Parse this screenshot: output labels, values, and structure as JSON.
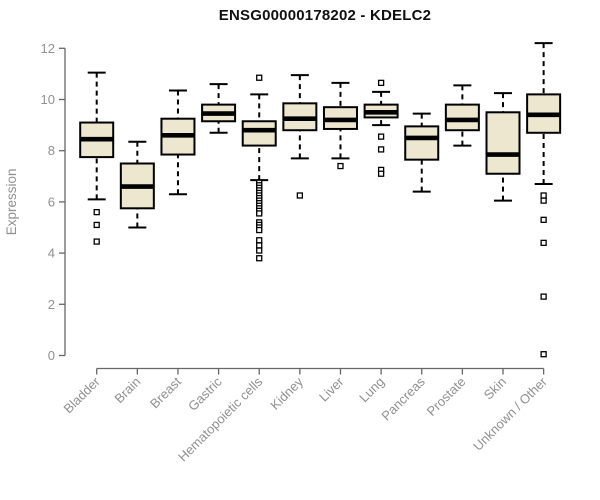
{
  "chart_data": {
    "type": "boxplot",
    "title": "ENSG00000178202 - KDELC2",
    "xlabel": "",
    "ylabel": "Expression",
    "ylim": [
      0,
      12
    ],
    "yticks": [
      0,
      2,
      4,
      6,
      8,
      10,
      12
    ],
    "grid": false,
    "legend": "none",
    "categories": [
      "Bladder",
      "Brain",
      "Breast",
      "Gastric",
      "Hematopoietic cells",
      "Kidney",
      "Liver",
      "Lung",
      "Pancreas",
      "Prostate",
      "Skin",
      "Unknown / Other"
    ],
    "series": [
      {
        "name": "Bladder",
        "low": 6.1,
        "q1": 7.75,
        "median": 8.45,
        "q3": 9.1,
        "high": 11.05,
        "outliers": [
          5.6,
          5.1,
          4.45
        ]
      },
      {
        "name": "Brain",
        "low": 5.0,
        "q1": 5.75,
        "median": 6.6,
        "q3": 7.5,
        "high": 8.35,
        "outliers": []
      },
      {
        "name": "Breast",
        "low": 6.3,
        "q1": 7.85,
        "median": 8.6,
        "q3": 9.25,
        "high": 10.35,
        "outliers": []
      },
      {
        "name": "Gastric",
        "low": 8.7,
        "q1": 9.15,
        "median": 9.45,
        "q3": 9.8,
        "high": 10.6,
        "outliers": []
      },
      {
        "name": "Hematopoietic cells",
        "low": 6.85,
        "q1": 8.2,
        "median": 8.8,
        "q3": 9.15,
        "high": 10.2,
        "outliers": [
          10.85,
          6.75,
          6.65,
          6.55,
          6.45,
          6.35,
          6.25,
          6.15,
          6.05,
          5.95,
          5.85,
          5.75,
          5.65,
          5.55,
          5.2,
          5.1,
          5.0,
          4.9,
          4.5,
          4.3,
          4.1,
          3.8
        ]
      },
      {
        "name": "Kidney",
        "low": 7.7,
        "q1": 8.8,
        "median": 9.25,
        "q3": 9.85,
        "high": 10.95,
        "outliers": [
          6.25
        ]
      },
      {
        "name": "Liver",
        "low": 7.7,
        "q1": 8.85,
        "median": 9.2,
        "q3": 9.7,
        "high": 10.65,
        "outliers": [
          7.4
        ]
      },
      {
        "name": "Lung",
        "low": 9.0,
        "q1": 9.3,
        "median": 9.5,
        "q3": 9.8,
        "high": 10.3,
        "outliers": [
          10.65,
          8.55,
          8.05,
          7.25,
          7.1
        ]
      },
      {
        "name": "Pancreas",
        "low": 6.4,
        "q1": 7.65,
        "median": 8.5,
        "q3": 8.95,
        "high": 9.45,
        "outliers": []
      },
      {
        "name": "Prostate",
        "low": 8.2,
        "q1": 8.8,
        "median": 9.2,
        "q3": 9.8,
        "high": 10.55,
        "outliers": []
      },
      {
        "name": "Skin",
        "low": 6.05,
        "q1": 7.1,
        "median": 7.85,
        "q3": 9.5,
        "high": 10.25,
        "outliers": []
      },
      {
        "name": "Unknown / Other",
        "low": 6.7,
        "q1": 8.7,
        "median": 9.4,
        "q3": 10.2,
        "high": 12.2,
        "outliers": [
          6.25,
          6.05,
          5.3,
          4.4,
          2.3,
          0.05
        ]
      }
    ],
    "colors": {
      "box_fill": "#EDE7CF",
      "box_border": "#000000",
      "median": "#000000",
      "whisker": "#000000",
      "outlier_fill": "#ffffff",
      "axis": "#666666",
      "tick_label": "#909090",
      "title": "#111111",
      "background": "#ffffff"
    }
  }
}
